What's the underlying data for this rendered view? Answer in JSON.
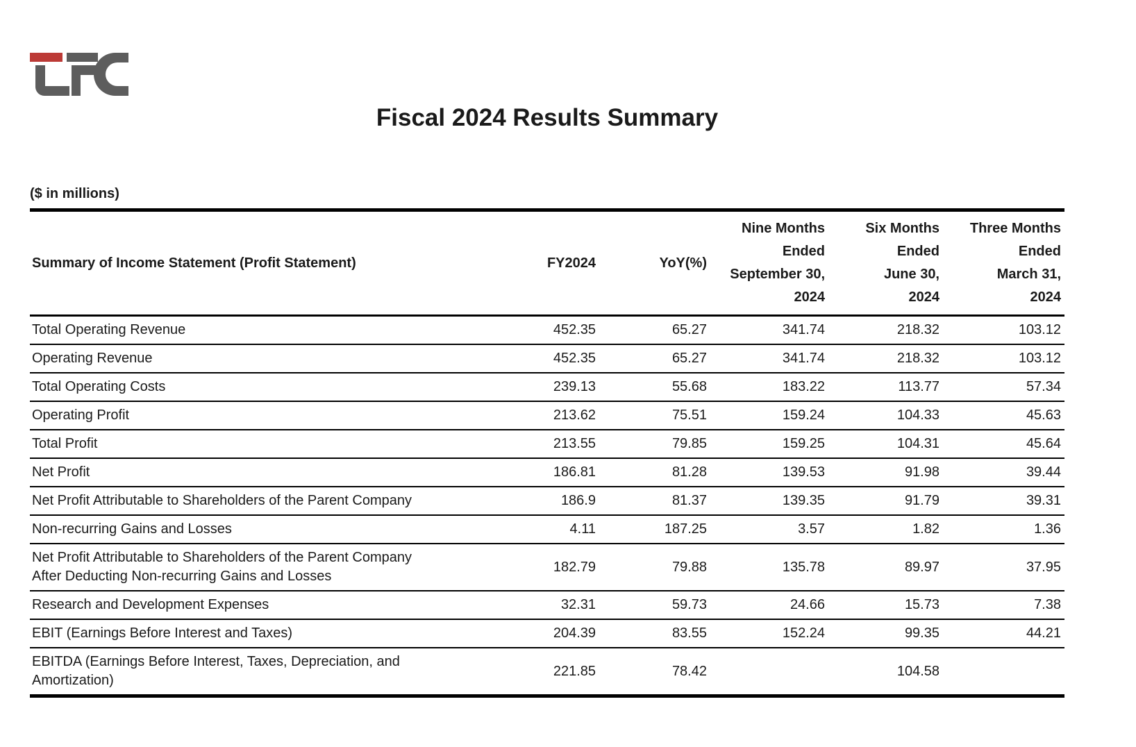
{
  "logo": {
    "alt": "LFC company logo",
    "red": "#bc3a36",
    "gray": "#5d5d5d"
  },
  "title": "Fiscal 2024 Results Summary",
  "units_note": "($ in millions)",
  "table": {
    "columns": [
      "Summary of Income Statement (Profit Statement)",
      "FY2024",
      "YoY(%)",
      "Nine Months\nEnded\nSeptember 30,\n2024",
      "Six Months\nEnded\nJune 30,\n2024",
      "Three Months\nEnded\nMarch 31,\n2024"
    ],
    "rows": [
      [
        "Total Operating Revenue",
        "452.35",
        "65.27",
        "341.74",
        "218.32",
        "103.12"
      ],
      [
        "Operating Revenue",
        "452.35",
        "65.27",
        "341.74",
        "218.32",
        "103.12"
      ],
      [
        "Total Operating Costs",
        "239.13",
        "55.68",
        "183.22",
        "113.77",
        "57.34"
      ],
      [
        "Operating Profit",
        "213.62",
        "75.51",
        "159.24",
        "104.33",
        "45.63"
      ],
      [
        "Total Profit",
        "213.55",
        "79.85",
        "159.25",
        "104.31",
        "45.64"
      ],
      [
        "Net Profit",
        "186.81",
        "81.28",
        "139.53",
        "91.98",
        "39.44"
      ],
      [
        "Net Profit Attributable to Shareholders of the Parent Company",
        "186.9",
        "81.37",
        "139.35",
        "91.79",
        "39.31"
      ],
      [
        "Non-recurring Gains and Losses",
        "4.11",
        "187.25",
        "3.57",
        "1.82",
        "1.36"
      ],
      [
        "Net Profit Attributable to Shareholders of the Parent Company\nAfter Deducting Non-recurring Gains and Losses",
        "182.79",
        "79.88",
        "135.78",
        "89.97",
        "37.95"
      ],
      [
        "Research and Development Expenses",
        "32.31",
        "59.73",
        "24.66",
        "15.73",
        "7.38"
      ],
      [
        "EBIT (Earnings Before Interest and Taxes)",
        "204.39",
        "83.55",
        "152.24",
        "99.35",
        "44.21"
      ],
      [
        "EBITDA (Earnings Before Interest, Taxes, Depreciation, and\nAmortization)",
        "221.85",
        "78.42",
        "",
        "104.58",
        ""
      ]
    ]
  }
}
